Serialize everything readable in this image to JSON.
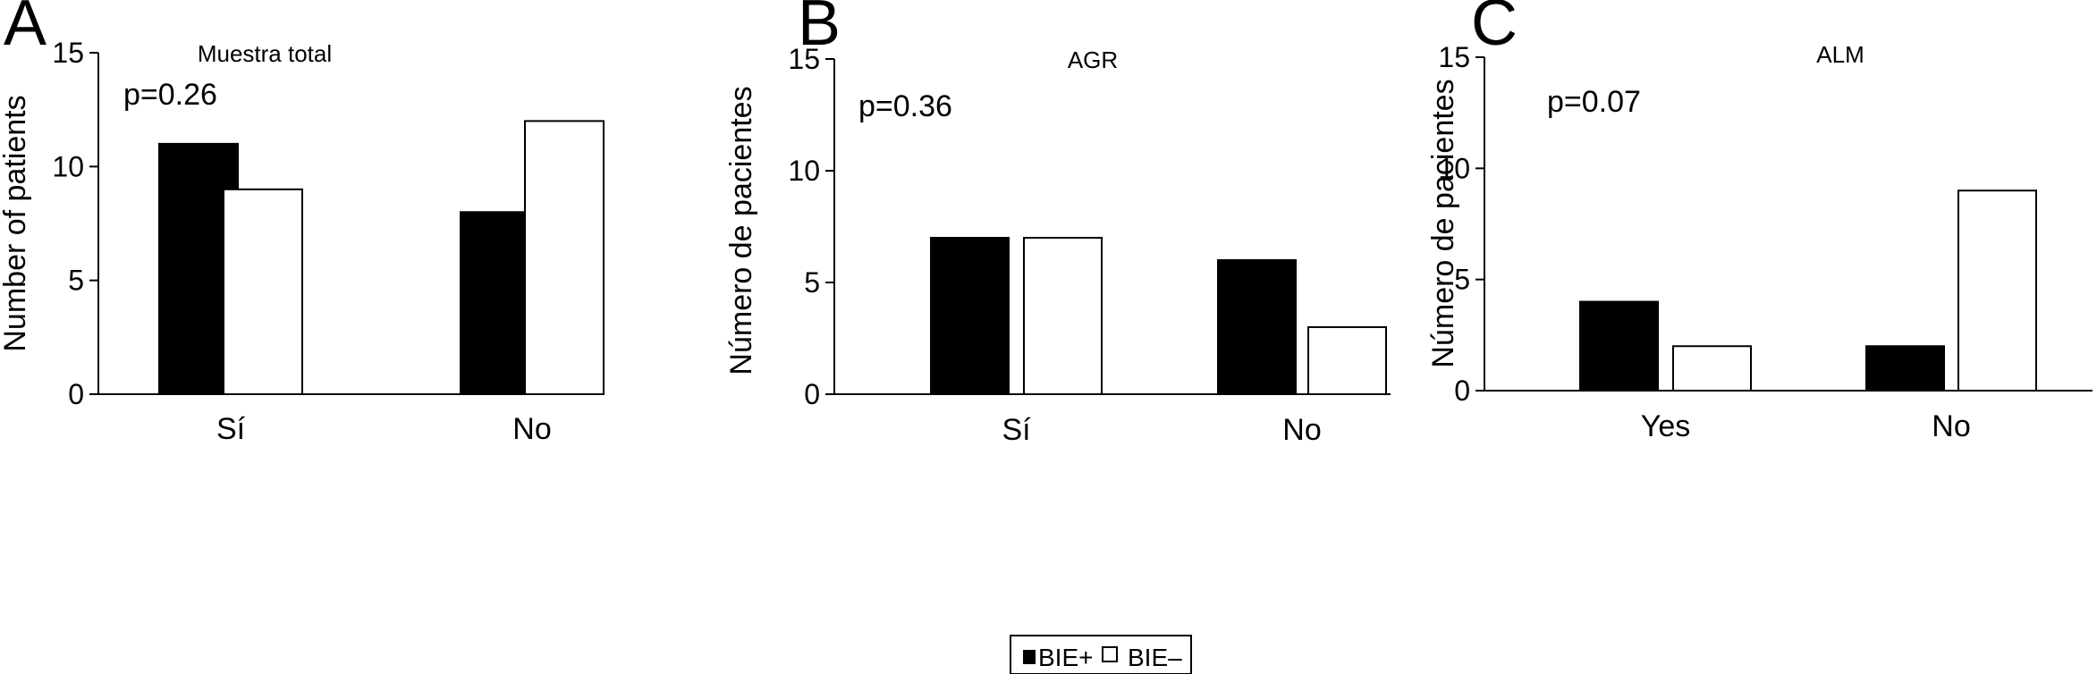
{
  "legend": {
    "entries": [
      {
        "label": "BIE+",
        "color": "#000000"
      },
      {
        "label": "BIE–",
        "color": "#ffffff"
      }
    ]
  },
  "chart_data": [
    {
      "type": "bar",
      "panel": "A",
      "title": "Muestra total",
      "annotation": "p=0.26",
      "ylabel": "Number of patients",
      "xlabel": "",
      "ylim": [
        0,
        15
      ],
      "yticks": [
        0,
        5,
        10,
        15
      ],
      "categories": [
        "Sí",
        "No"
      ],
      "series": [
        {
          "name": "BIE+",
          "color": "#000000",
          "values": [
            11,
            8
          ]
        },
        {
          "name": "BIE–",
          "color": "#ffffff",
          "values": [
            9,
            12
          ]
        }
      ]
    },
    {
      "type": "bar",
      "panel": "B",
      "title": "AGR",
      "annotation": "p=0.36",
      "ylabel": "Número de pacientes",
      "xlabel": "",
      "ylim": [
        0,
        15
      ],
      "yticks": [
        0,
        5,
        10,
        15
      ],
      "categories": [
        "Sí",
        "No"
      ],
      "series": [
        {
          "name": "BIE+",
          "color": "#000000",
          "values": [
            7,
            6
          ]
        },
        {
          "name": "BIE–",
          "color": "#ffffff",
          "values": [
            7,
            3
          ]
        }
      ]
    },
    {
      "type": "bar",
      "panel": "C",
      "title": "ALM",
      "annotation": "p=0.07",
      "ylabel": "Número de pacientes",
      "xlabel": "",
      "ylim": [
        0,
        15
      ],
      "yticks": [
        0,
        5,
        10,
        15
      ],
      "categories": [
        "Yes",
        "No"
      ],
      "series": [
        {
          "name": "BIE+",
          "color": "#000000",
          "values": [
            4,
            2
          ]
        },
        {
          "name": "BIE–",
          "color": "#ffffff",
          "values": [
            2,
            9
          ]
        }
      ]
    }
  ]
}
